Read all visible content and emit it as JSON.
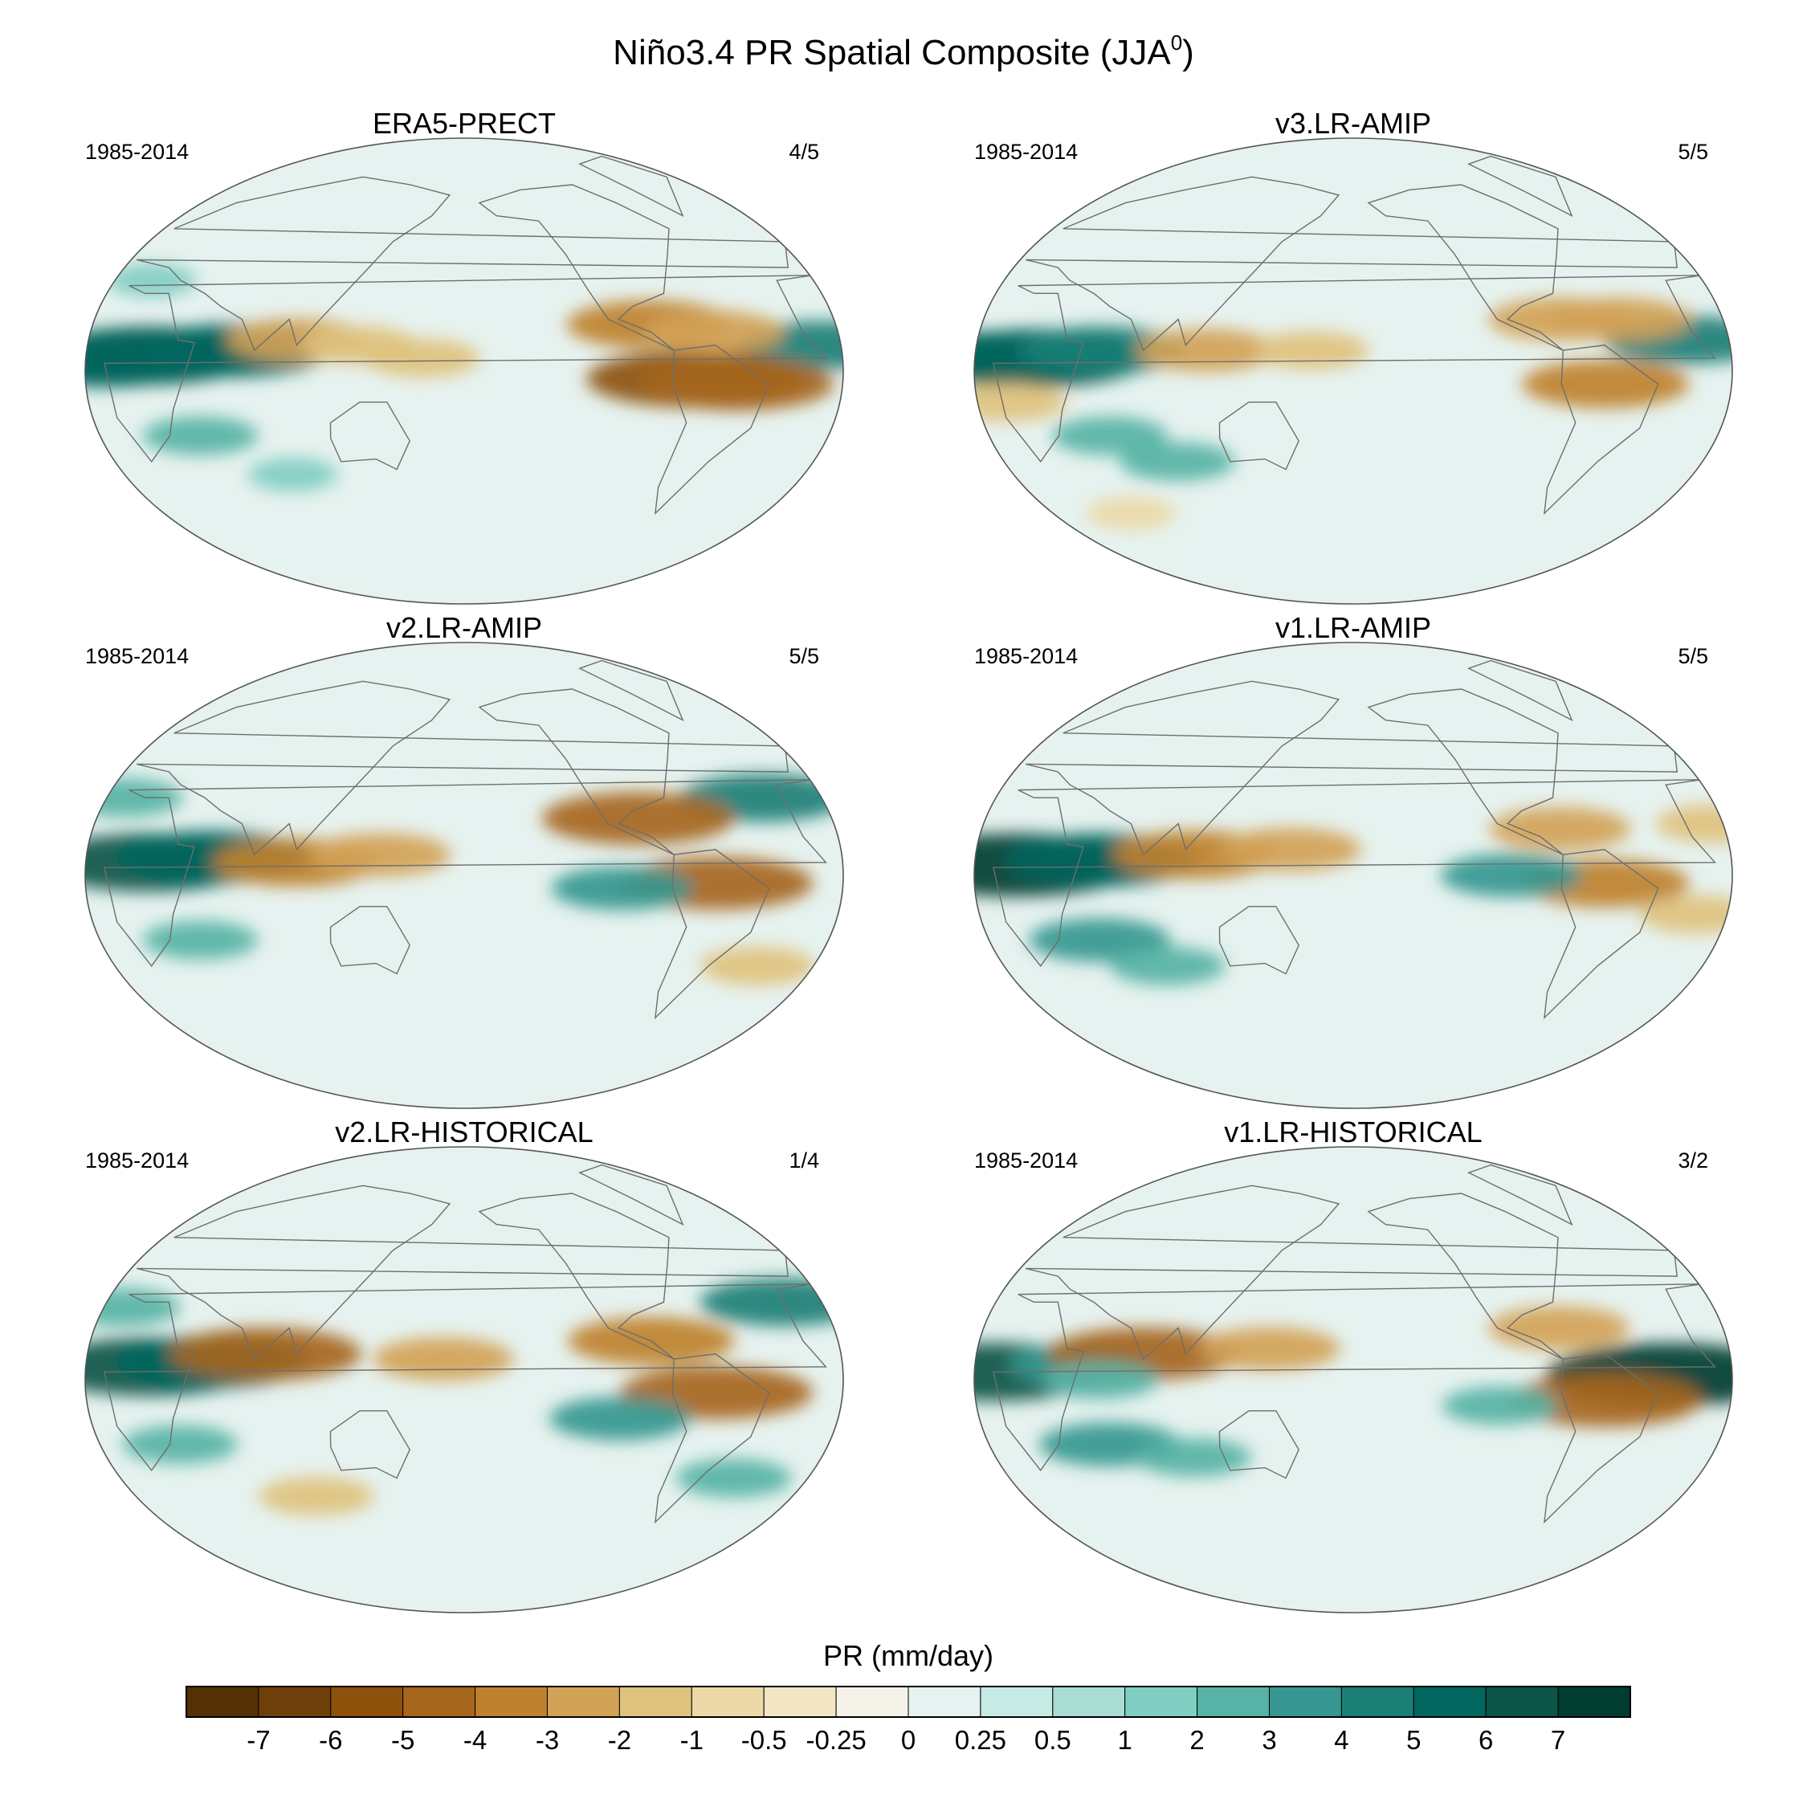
{
  "title_main": "Niño3.4 PR Spatial Composite (JJA",
  "title_sup": "0",
  "title_close": ")",
  "panels": [
    {
      "name": "ERA5-PRECT",
      "period": "1985-2014",
      "count": "4/5"
    },
    {
      "name": "v3.LR-AMIP",
      "period": "1985-2014",
      "count": "5/5"
    },
    {
      "name": "v2.LR-AMIP",
      "period": "1985-2014",
      "count": "5/5"
    },
    {
      "name": "v1.LR-AMIP",
      "period": "1985-2014",
      "count": "5/5"
    },
    {
      "name": "v2.LR-HISTORICAL",
      "period": "1985-2014",
      "count": "1/4"
    },
    {
      "name": "v1.LR-HISTORICAL",
      "period": "1985-2014",
      "count": "3/2"
    }
  ],
  "chart_data": {
    "type": "heatmap",
    "projection": "Robinson (global, Pacific-centered)",
    "variable": "PR",
    "colorbar": {
      "label": "PR (mm/day)",
      "tick_labels": [
        "-7",
        "-6",
        "-5",
        "-4",
        "-3",
        "-2",
        "-1",
        "-0.5",
        "-0.25",
        "0",
        "0.25",
        "0.5",
        "1",
        "2",
        "3",
        "4",
        "5",
        "6",
        "7"
      ],
      "colors": [
        "#543005",
        "#6f3f0b",
        "#8c510a",
        "#a6661c",
        "#bf812d",
        "#d2a257",
        "#dfc27d",
        "#ecd9a7",
        "#f2e6c4",
        "#f5f2ea",
        "#e6f2ef",
        "#c7eae5",
        "#a9dcd3",
        "#80cdc1",
        "#56b3a5",
        "#35978f",
        "#1b7f76",
        "#01665e",
        "#0b5447",
        "#003c30"
      ]
    },
    "panels": [
      {
        "name": "ERA5-PRECT",
        "period": "1985-2014",
        "count": "4/5",
        "features": [
          {
            "lon": -150,
            "lat": 6,
            "value": 6
          },
          {
            "lon": -170,
            "lat": 4,
            "value": 5
          },
          {
            "lon": -110,
            "lat": 8,
            "value": 5
          },
          {
            "lon": 170,
            "lat": 10,
            "value": 4
          },
          {
            "lon": 110,
            "lat": -3,
            "value": -6
          },
          {
            "lon": 130,
            "lat": -5,
            "value": -5
          },
          {
            "lon": 90,
            "lat": 18,
            "value": -4
          },
          {
            "lon": 120,
            "lat": 15,
            "value": -3
          },
          {
            "lon": -80,
            "lat": 12,
            "value": -3
          },
          {
            "lon": -50,
            "lat": 10,
            "value": -2
          },
          {
            "lon": -130,
            "lat": -25,
            "value": 2
          },
          {
            "lon": -90,
            "lat": -40,
            "value": 1
          },
          {
            "lon": -160,
            "lat": 35,
            "value": 1
          },
          {
            "lon": -20,
            "lat": 5,
            "value": -2
          }
        ]
      },
      {
        "name": "v3.LR-AMIP",
        "period": "1985-2014",
        "count": "5/5",
        "features": [
          {
            "lon": -150,
            "lat": 5,
            "value": 6
          },
          {
            "lon": -170,
            "lat": 5,
            "value": 5
          },
          {
            "lon": -120,
            "lat": 8,
            "value": 4
          },
          {
            "lon": 160,
            "lat": 12,
            "value": 4
          },
          {
            "lon": 120,
            "lat": -5,
            "value": -4
          },
          {
            "lon": 100,
            "lat": 20,
            "value": -3
          },
          {
            "lon": 130,
            "lat": 20,
            "value": -3
          },
          {
            "lon": -165,
            "lat": -12,
            "value": -2
          },
          {
            "lon": -70,
            "lat": 8,
            "value": -3
          },
          {
            "lon": -20,
            "lat": 8,
            "value": -2
          },
          {
            "lon": -120,
            "lat": -25,
            "value": 2
          },
          {
            "lon": -90,
            "lat": -35,
            "value": 2
          },
          {
            "lon": -130,
            "lat": -55,
            "value": -1
          }
        ]
      },
      {
        "name": "v2.LR-AMIP",
        "period": "1985-2014",
        "count": "5/5",
        "features": [
          {
            "lon": -150,
            "lat": 5,
            "value": 6
          },
          {
            "lon": -120,
            "lat": 7,
            "value": 5
          },
          {
            "lon": 150,
            "lat": 30,
            "value": 4
          },
          {
            "lon": -170,
            "lat": 30,
            "value": 2
          },
          {
            "lon": 120,
            "lat": -3,
            "value": -5
          },
          {
            "lon": 85,
            "lat": 22,
            "value": -5
          },
          {
            "lon": -80,
            "lat": 5,
            "value": -4
          },
          {
            "lon": -40,
            "lat": 8,
            "value": -3
          },
          {
            "lon": 75,
            "lat": -5,
            "value": 3
          },
          {
            "lon": -130,
            "lat": -25,
            "value": 2
          },
          {
            "lon": 150,
            "lat": -35,
            "value": -2
          }
        ]
      },
      {
        "name": "v1.LR-AMIP",
        "period": "1985-2014",
        "count": "5/5",
        "features": [
          {
            "lon": -160,
            "lat": 4,
            "value": 7
          },
          {
            "lon": -120,
            "lat": 6,
            "value": 5
          },
          {
            "lon": 120,
            "lat": -3,
            "value": -4
          },
          {
            "lon": 100,
            "lat": 18,
            "value": -3
          },
          {
            "lon": 75,
            "lat": 0,
            "value": 3
          },
          {
            "lon": 175,
            "lat": 20,
            "value": -2
          },
          {
            "lon": -75,
            "lat": 8,
            "value": -4
          },
          {
            "lon": -30,
            "lat": 10,
            "value": -3
          },
          {
            "lon": -125,
            "lat": -25,
            "value": 3
          },
          {
            "lon": -95,
            "lat": -35,
            "value": 2
          },
          {
            "lon": 165,
            "lat": -15,
            "value": -2
          }
        ]
      },
      {
        "name": "v2.LR-HISTORICAL",
        "period": "1985-2014",
        "count": "1/4",
        "features": [
          {
            "lon": -150,
            "lat": 5,
            "value": 6
          },
          {
            "lon": -120,
            "lat": 7,
            "value": 5
          },
          {
            "lon": 160,
            "lat": 30,
            "value": 4
          },
          {
            "lon": -170,
            "lat": 28,
            "value": 2
          },
          {
            "lon": 120,
            "lat": -5,
            "value": -5
          },
          {
            "lon": 90,
            "lat": 15,
            "value": -4
          },
          {
            "lon": -95,
            "lat": 10,
            "value": -5
          },
          {
            "lon": -10,
            "lat": 8,
            "value": -3
          },
          {
            "lon": 75,
            "lat": -15,
            "value": 3
          },
          {
            "lon": -140,
            "lat": -25,
            "value": 2
          },
          {
            "lon": -80,
            "lat": -45,
            "value": -2
          },
          {
            "lon": 140,
            "lat": -38,
            "value": 2
          }
        ]
      },
      {
        "name": "v1.LR-HISTORICAL",
        "period": "1985-2014",
        "count": "3/2",
        "features": [
          {
            "lon": -170,
            "lat": 3,
            "value": 6
          },
          {
            "lon": 150,
            "lat": 2,
            "value": 7
          },
          {
            "lon": -130,
            "lat": 6,
            "value": 3
          },
          {
            "lon": -100,
            "lat": 10,
            "value": -5
          },
          {
            "lon": -120,
            "lat": 0,
            "value": 2
          },
          {
            "lon": 120,
            "lat": -8,
            "value": -5
          },
          {
            "lon": 100,
            "lat": 20,
            "value": -3
          },
          {
            "lon": -40,
            "lat": 12,
            "value": -3
          },
          {
            "lon": -120,
            "lat": -25,
            "value": 3
          },
          {
            "lon": -80,
            "lat": -30,
            "value": 2
          },
          {
            "lon": 70,
            "lat": -10,
            "value": 2
          }
        ]
      }
    ]
  }
}
